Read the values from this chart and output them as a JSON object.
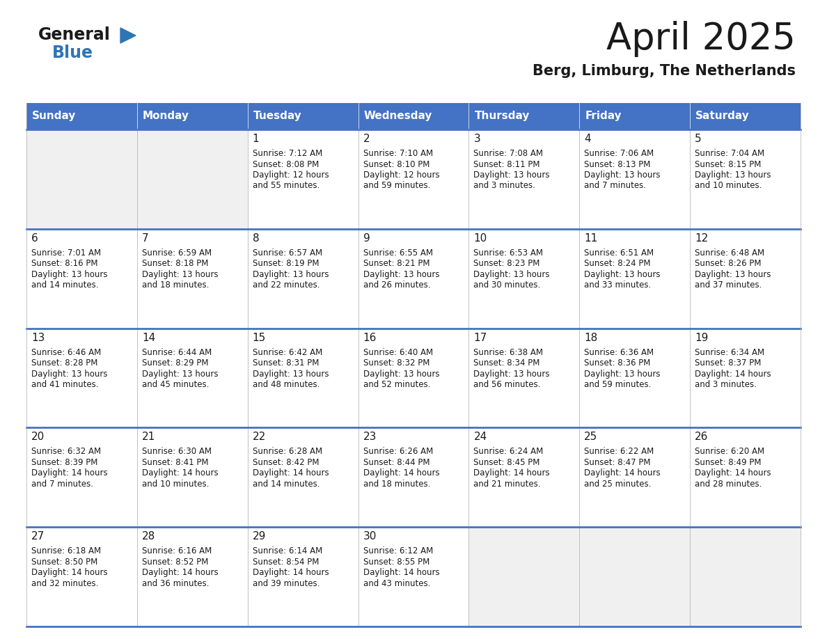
{
  "title": "April 2025",
  "subtitle": "Berg, Limburg, The Netherlands",
  "days_of_week": [
    "Sunday",
    "Monday",
    "Tuesday",
    "Wednesday",
    "Thursday",
    "Friday",
    "Saturday"
  ],
  "header_bg": "#4472C4",
  "header_text": "#FFFFFF",
  "cell_bg_light": "#F0F0F0",
  "cell_bg_white": "#FFFFFF",
  "text_color": "#1a1a1a",
  "border_color": "#4472C4",
  "grid_color": "#aaaaaa",
  "calendar_data": [
    [
      null,
      null,
      {
        "day": 1,
        "sunrise": "7:12 AM",
        "sunset": "8:08 PM",
        "daylight": "12 hours",
        "daylight2": "and 55 minutes."
      },
      {
        "day": 2,
        "sunrise": "7:10 AM",
        "sunset": "8:10 PM",
        "daylight": "12 hours",
        "daylight2": "and 59 minutes."
      },
      {
        "day": 3,
        "sunrise": "7:08 AM",
        "sunset": "8:11 PM",
        "daylight": "13 hours",
        "daylight2": "and 3 minutes."
      },
      {
        "day": 4,
        "sunrise": "7:06 AM",
        "sunset": "8:13 PM",
        "daylight": "13 hours",
        "daylight2": "and 7 minutes."
      },
      {
        "day": 5,
        "sunrise": "7:04 AM",
        "sunset": "8:15 PM",
        "daylight": "13 hours",
        "daylight2": "and 10 minutes."
      }
    ],
    [
      {
        "day": 6,
        "sunrise": "7:01 AM",
        "sunset": "8:16 PM",
        "daylight": "13 hours",
        "daylight2": "and 14 minutes."
      },
      {
        "day": 7,
        "sunrise": "6:59 AM",
        "sunset": "8:18 PM",
        "daylight": "13 hours",
        "daylight2": "and 18 minutes."
      },
      {
        "day": 8,
        "sunrise": "6:57 AM",
        "sunset": "8:19 PM",
        "daylight": "13 hours",
        "daylight2": "and 22 minutes."
      },
      {
        "day": 9,
        "sunrise": "6:55 AM",
        "sunset": "8:21 PM",
        "daylight": "13 hours",
        "daylight2": "and 26 minutes."
      },
      {
        "day": 10,
        "sunrise": "6:53 AM",
        "sunset": "8:23 PM",
        "daylight": "13 hours",
        "daylight2": "and 30 minutes."
      },
      {
        "day": 11,
        "sunrise": "6:51 AM",
        "sunset": "8:24 PM",
        "daylight": "13 hours",
        "daylight2": "and 33 minutes."
      },
      {
        "day": 12,
        "sunrise": "6:48 AM",
        "sunset": "8:26 PM",
        "daylight": "13 hours",
        "daylight2": "and 37 minutes."
      }
    ],
    [
      {
        "day": 13,
        "sunrise": "6:46 AM",
        "sunset": "8:28 PM",
        "daylight": "13 hours",
        "daylight2": "and 41 minutes."
      },
      {
        "day": 14,
        "sunrise": "6:44 AM",
        "sunset": "8:29 PM",
        "daylight": "13 hours",
        "daylight2": "and 45 minutes."
      },
      {
        "day": 15,
        "sunrise": "6:42 AM",
        "sunset": "8:31 PM",
        "daylight": "13 hours",
        "daylight2": "and 48 minutes."
      },
      {
        "day": 16,
        "sunrise": "6:40 AM",
        "sunset": "8:32 PM",
        "daylight": "13 hours",
        "daylight2": "and 52 minutes."
      },
      {
        "day": 17,
        "sunrise": "6:38 AM",
        "sunset": "8:34 PM",
        "daylight": "13 hours",
        "daylight2": "and 56 minutes."
      },
      {
        "day": 18,
        "sunrise": "6:36 AM",
        "sunset": "8:36 PM",
        "daylight": "13 hours",
        "daylight2": "and 59 minutes."
      },
      {
        "day": 19,
        "sunrise": "6:34 AM",
        "sunset": "8:37 PM",
        "daylight": "14 hours",
        "daylight2": "and 3 minutes."
      }
    ],
    [
      {
        "day": 20,
        "sunrise": "6:32 AM",
        "sunset": "8:39 PM",
        "daylight": "14 hours",
        "daylight2": "and 7 minutes."
      },
      {
        "day": 21,
        "sunrise": "6:30 AM",
        "sunset": "8:41 PM",
        "daylight": "14 hours",
        "daylight2": "and 10 minutes."
      },
      {
        "day": 22,
        "sunrise": "6:28 AM",
        "sunset": "8:42 PM",
        "daylight": "14 hours",
        "daylight2": "and 14 minutes."
      },
      {
        "day": 23,
        "sunrise": "6:26 AM",
        "sunset": "8:44 PM",
        "daylight": "14 hours",
        "daylight2": "and 18 minutes."
      },
      {
        "day": 24,
        "sunrise": "6:24 AM",
        "sunset": "8:45 PM",
        "daylight": "14 hours",
        "daylight2": "and 21 minutes."
      },
      {
        "day": 25,
        "sunrise": "6:22 AM",
        "sunset": "8:47 PM",
        "daylight": "14 hours",
        "daylight2": "and 25 minutes."
      },
      {
        "day": 26,
        "sunrise": "6:20 AM",
        "sunset": "8:49 PM",
        "daylight": "14 hours",
        "daylight2": "and 28 minutes."
      }
    ],
    [
      {
        "day": 27,
        "sunrise": "6:18 AM",
        "sunset": "8:50 PM",
        "daylight": "14 hours",
        "daylight2": "and 32 minutes."
      },
      {
        "day": 28,
        "sunrise": "6:16 AM",
        "sunset": "8:52 PM",
        "daylight": "14 hours",
        "daylight2": "and 36 minutes."
      },
      {
        "day": 29,
        "sunrise": "6:14 AM",
        "sunset": "8:54 PM",
        "daylight": "14 hours",
        "daylight2": "and 39 minutes."
      },
      {
        "day": 30,
        "sunrise": "6:12 AM",
        "sunset": "8:55 PM",
        "daylight": "14 hours",
        "daylight2": "and 43 minutes."
      },
      null,
      null,
      null
    ]
  ],
  "logo_general_color": "#1a1a1a",
  "logo_blue_color": "#2E75B6",
  "logo_triangle_color": "#2E75B6",
  "title_fontsize": 38,
  "subtitle_fontsize": 15,
  "header_fontsize": 11,
  "day_num_fontsize": 11,
  "cell_text_fontsize": 8.5
}
